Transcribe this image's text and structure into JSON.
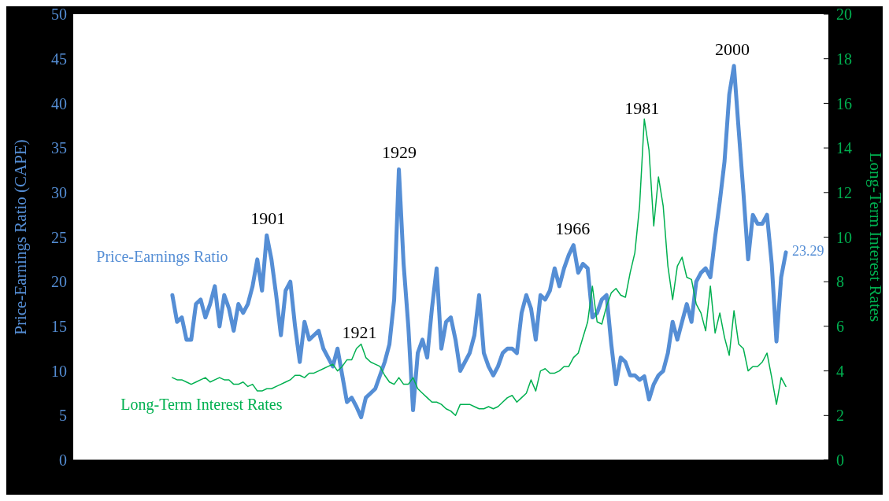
{
  "chart_data": {
    "type": "line",
    "ylabel": "Price-Earnings Ratio (CAPE)",
    "y2label": "Long-Term Interest Rates",
    "categories": [
      null,
      null,
      null,
      null,
      null,
      null,
      null,
      null,
      null,
      null,
      null,
      null,
      null,
      null,
      null,
      null,
      null,
      null,
      null,
      null,
      null,
      null,
      null,
      null,
      null,
      null,
      null,
      null,
      null,
      null,
      null,
      null,
      null,
      null,
      null,
      null,
      null,
      null,
      null,
      null,
      null,
      null,
      null,
      null,
      null,
      null,
      null,
      null,
      null,
      null,
      null,
      null,
      null,
      null,
      null,
      null,
      null,
      null,
      null,
      null,
      null,
      null,
      null,
      null,
      null,
      null,
      null,
      null,
      null,
      null,
      null,
      null,
      null,
      null,
      null,
      null,
      null,
      null,
      null,
      null,
      null,
      null,
      null,
      null,
      null,
      null,
      null,
      null,
      null,
      null,
      null,
      null,
      null,
      null,
      null,
      null,
      null,
      null,
      null,
      null,
      null,
      null,
      null,
      null,
      null,
      null,
      null,
      null,
      null,
      null,
      null,
      null,
      null,
      null,
      null,
      null,
      null,
      null,
      null,
      null,
      null,
      null,
      null,
      null,
      null,
      null,
      null,
      null,
      null,
      null,
      null,
      null,
      null,
      null,
      null,
      null,
      null,
      null,
      null,
      null,
      null,
      null,
      null,
      null,
      null,
      null,
      null,
      null,
      null,
      null,
      null,
      null,
      null,
      null,
      null,
      null,
      null,
      null,
      null,
      null,
      null
    ],
    "series": [
      {
        "name": "Price-Earnings Ratio",
        "color": "#558ed5",
        "values": [
          null,
          null,
          null,
          null,
          null,
          null,
          null,
          null,
          null,
          null,
          null,
          null,
          null,
          null,
          null,
          null,
          null,
          null,
          null,
          null,
          null,
          18.5,
          15.5,
          16.0,
          13.5,
          13.5,
          17.5,
          18.0,
          16.0,
          17.5,
          19.5,
          15.0,
          18.5,
          17.0,
          14.5,
          17.5,
          16.5,
          17.5,
          19.5,
          22.5,
          19.0,
          25.2,
          22.5,
          18.5,
          14.0,
          19.0,
          20.0,
          15.0,
          11.0,
          15.5,
          13.5,
          14.0,
          14.5,
          12.5,
          11.5,
          10.5,
          12.5,
          9.5,
          6.5,
          7.0,
          6.0,
          4.8,
          7.0,
          7.5,
          8.0,
          9.5,
          11.0,
          13.0,
          18.0,
          32.6,
          22.0,
          15.0,
          5.6,
          12.0,
          13.5,
          11.5,
          17.0,
          21.5,
          12.5,
          15.5,
          16.0,
          13.5,
          10.0,
          11.0,
          12.0,
          14.0,
          18.5,
          12.0,
          10.5,
          9.5,
          10.5,
          12.0,
          12.5,
          12.5,
          12.0,
          16.5,
          18.5,
          17.0,
          13.5,
          18.5,
          18.0,
          19.0,
          21.5,
          19.5,
          21.5,
          23.0,
          24.1,
          21.0,
          22.0,
          21.5,
          16.0,
          16.5,
          18.0,
          18.5,
          13.0,
          8.5,
          11.5,
          11.0,
          9.5,
          9.5,
          9.0,
          9.4,
          6.8,
          8.5,
          9.5,
          10.0,
          12.0,
          15.5,
          13.5,
          15.5,
          17.5,
          15.5,
          20.0,
          21.0,
          21.5,
          20.5,
          25.0,
          29.0,
          33.5,
          41.0,
          44.2,
          37.0,
          30.0,
          22.5,
          27.5,
          26.5,
          26.5,
          27.5,
          22.0,
          13.3,
          20.5,
          23.29,
          null,
          null,
          null,
          null,
          null,
          null,
          null,
          null,
          null
        ],
        "value_labels": [
          null,
          null,
          null,
          null,
          null,
          null,
          null,
          null,
          null,
          null,
          null,
          null,
          null,
          null,
          null,
          null,
          null,
          null,
          null,
          null,
          null,
          null,
          null,
          null,
          null,
          null,
          null,
          null,
          null,
          null,
          null,
          null,
          null,
          null,
          null,
          null,
          null,
          null,
          null,
          null,
          null,
          null,
          null,
          null,
          null,
          null,
          null,
          null,
          null,
          null,
          null,
          null,
          null,
          null,
          null,
          null,
          null,
          null,
          null,
          null,
          null,
          null,
          null,
          null,
          null,
          null,
          null,
          null,
          null,
          null,
          null,
          null,
          null,
          null,
          null,
          null,
          null,
          null,
          null,
          null,
          null,
          null,
          null,
          null,
          null,
          null,
          null,
          null,
          null,
          null,
          null,
          null,
          null,
          null,
          null,
          null,
          null,
          null,
          null,
          null,
          null,
          null,
          null,
          null,
          null,
          null,
          null,
          null,
          null,
          null,
          null,
          null,
          null,
          null,
          null,
          null,
          null,
          null,
          null,
          null,
          null,
          null,
          null,
          null,
          null,
          null,
          null,
          null,
          null,
          null,
          null,
          null,
          null,
          null,
          null,
          null,
          null,
          null,
          null,
          null,
          null,
          null,
          null,
          null,
          null,
          null,
          null,
          null,
          null,
          null,
          null,
          "23.29",
          null,
          null,
          null,
          null,
          null,
          null,
          null,
          null,
          null
        ]
      },
      {
        "name": "Long-Term Interest Rates",
        "color": "#00b050",
        "axis": "y2",
        "values": [
          null,
          null,
          null,
          null,
          null,
          null,
          null,
          null,
          null,
          null,
          null,
          null,
          null,
          null,
          null,
          null,
          null,
          null,
          null,
          null,
          null,
          3.7,
          3.6,
          3.6,
          3.5,
          3.4,
          3.5,
          3.6,
          3.7,
          3.5,
          3.6,
          3.7,
          3.6,
          3.6,
          3.4,
          3.4,
          3.5,
          3.3,
          3.4,
          3.1,
          3.1,
          3.2,
          3.2,
          3.3,
          3.4,
          3.5,
          3.6,
          3.8,
          3.8,
          3.7,
          3.9,
          3.9,
          4.0,
          4.1,
          4.2,
          4.3,
          4.0,
          4.2,
          4.5,
          4.5,
          5.0,
          5.2,
          4.6,
          4.4,
          4.3,
          4.2,
          3.8,
          3.5,
          3.4,
          3.7,
          3.4,
          3.4,
          3.7,
          3.2,
          3.0,
          2.8,
          2.6,
          2.6,
          2.5,
          2.3,
          2.2,
          2.0,
          2.5,
          2.5,
          2.5,
          2.4,
          2.3,
          2.3,
          2.4,
          2.3,
          2.4,
          2.6,
          2.8,
          2.9,
          2.6,
          2.8,
          3.0,
          3.6,
          3.1,
          4.0,
          4.1,
          3.9,
          3.9,
          4.0,
          4.2,
          4.2,
          4.6,
          4.8,
          5.5,
          6.2,
          7.8,
          6.2,
          6.1,
          6.9,
          7.5,
          7.7,
          7.4,
          7.3,
          8.4,
          9.3,
          11.4,
          15.3,
          13.9,
          10.5,
          12.7,
          11.4,
          8.7,
          7.2,
          8.7,
          9.1,
          8.2,
          8.1,
          7.0,
          6.6,
          5.8,
          7.8,
          5.7,
          6.6,
          5.5,
          4.7,
          6.7,
          5.2,
          5.0,
          4.0,
          4.2,
          4.2,
          4.4,
          4.8,
          3.7,
          2.5,
          3.7,
          3.3,
          null,
          null,
          null,
          null,
          null,
          null,
          null,
          null,
          null
        ]
      }
    ],
    "ylim": [
      0,
      50
    ],
    "yticks": [
      0,
      5,
      10,
      15,
      20,
      25,
      30,
      35,
      40,
      45,
      50
    ],
    "y2lim": [
      0,
      20
    ],
    "y2ticks": [
      0,
      2,
      4,
      6,
      8,
      10,
      12,
      14,
      16,
      18,
      20
    ],
    "annotations": [
      {
        "text": "1901",
        "y": 25.2
      },
      "1921",
      {
        "text": "1929",
        "y": 32.6
      },
      {
        "text": "1966",
        "y": 24.1
      },
      "1981",
      {
        "text": "2000",
        "y": 44.2
      }
    ]
  }
}
